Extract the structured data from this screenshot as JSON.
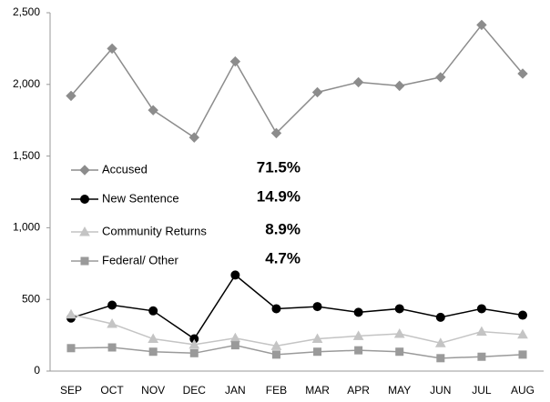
{
  "chart_data": {
    "type": "line",
    "categories": [
      "SEP",
      "OCT",
      "NOV",
      "DEC",
      "JAN",
      "FEB",
      "MAR",
      "APR",
      "MAY",
      "JUN",
      "JUL",
      "AUG"
    ],
    "series": [
      {
        "name": "Accused",
        "color": "#8c8c8c",
        "marker": "diamond",
        "annotation": "71.5%",
        "values": [
          1920,
          2250,
          1820,
          1630,
          2160,
          1660,
          1945,
          2015,
          1990,
          2050,
          2415,
          2075
        ]
      },
      {
        "name": "New Sentence",
        "color": "#000000",
        "marker": "circle",
        "annotation": "14.9%",
        "values": [
          370,
          460,
          420,
          225,
          670,
          435,
          450,
          410,
          435,
          375,
          435,
          390
        ]
      },
      {
        "name": "Community Returns",
        "color": "#c4c4c4",
        "marker": "triangle",
        "annotation": "8.9%",
        "values": [
          395,
          330,
          225,
          185,
          230,
          175,
          225,
          245,
          260,
          195,
          275,
          255
        ]
      },
      {
        "name": "Federal/ Other",
        "color": "#9a9a9a",
        "marker": "square",
        "annotation": "4.7%",
        "values": [
          160,
          165,
          135,
          125,
          180,
          115,
          135,
          145,
          135,
          90,
          100,
          115
        ]
      }
    ],
    "ylim": [
      0,
      2500
    ],
    "yticks": [
      0,
      500,
      {
        "value": 1000,
        "label": "1,000"
      },
      {
        "value": 1500,
        "label": "1,500"
      },
      {
        "value": 2000,
        "label": "2,000"
      },
      {
        "value": 2500,
        "label": "2,500"
      }
    ],
    "grid": false
  }
}
